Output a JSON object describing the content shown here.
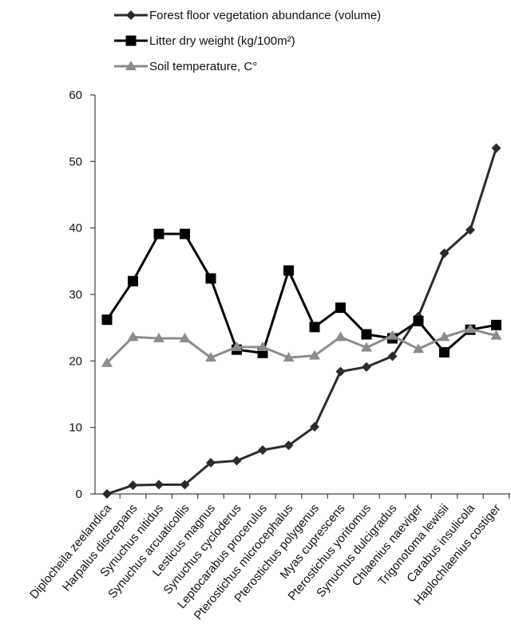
{
  "chart_data": {
    "type": "line",
    "categories": [
      "Diplocheila zeelandica",
      "Harpalus discrepans",
      "Synuchus nitidus",
      "Synuchus arcuaticollis",
      "Lesticus magnus",
      "Synuchus cycloderus",
      "Leptocarabus procerulus",
      "Pterostichus microcephalus",
      "Pterostichus polygenus",
      "Myas cuprescens",
      "Pterostichus yoritomus",
      "Synuchus dulcigradus",
      "Chlaenius naeviger",
      "Trigonotoma lewisii",
      "Carabus insulicola",
      "Haplochlaenius costiger"
    ],
    "series": [
      {
        "name": "Forest floor vegetation abundance (volume)",
        "color": "#2b2b2b",
        "marker": "diamond",
        "values": [
          0,
          1.3,
          1.4,
          1.4,
          4.7,
          5.0,
          6.6,
          7.3,
          10.1,
          18.4,
          19.1,
          20.7,
          26.7,
          36.2,
          39.7,
          52.0
        ]
      },
      {
        "name": "Litter dry weight (kg/100m²)",
        "color": "#000000",
        "marker": "square",
        "values": [
          26.2,
          32.0,
          39.1,
          39.1,
          32.4,
          21.7,
          21.2,
          33.6,
          25.1,
          28.0,
          24.0,
          23.4,
          26.0,
          21.3,
          24.7,
          25.4
        ]
      },
      {
        "name": "Soil temperature, C°",
        "color": "#8c8c8c",
        "marker": "triangle",
        "values": [
          19.7,
          23.6,
          23.4,
          23.4,
          20.5,
          22.1,
          22.1,
          20.5,
          20.8,
          23.6,
          22.0,
          23.8,
          21.8,
          23.6,
          24.8,
          23.8
        ]
      }
    ],
    "ylim": [
      0,
      60
    ],
    "yticks": [
      0,
      10,
      20,
      30,
      40,
      50,
      60
    ],
    "legend_position": "top-left",
    "grid": false
  }
}
